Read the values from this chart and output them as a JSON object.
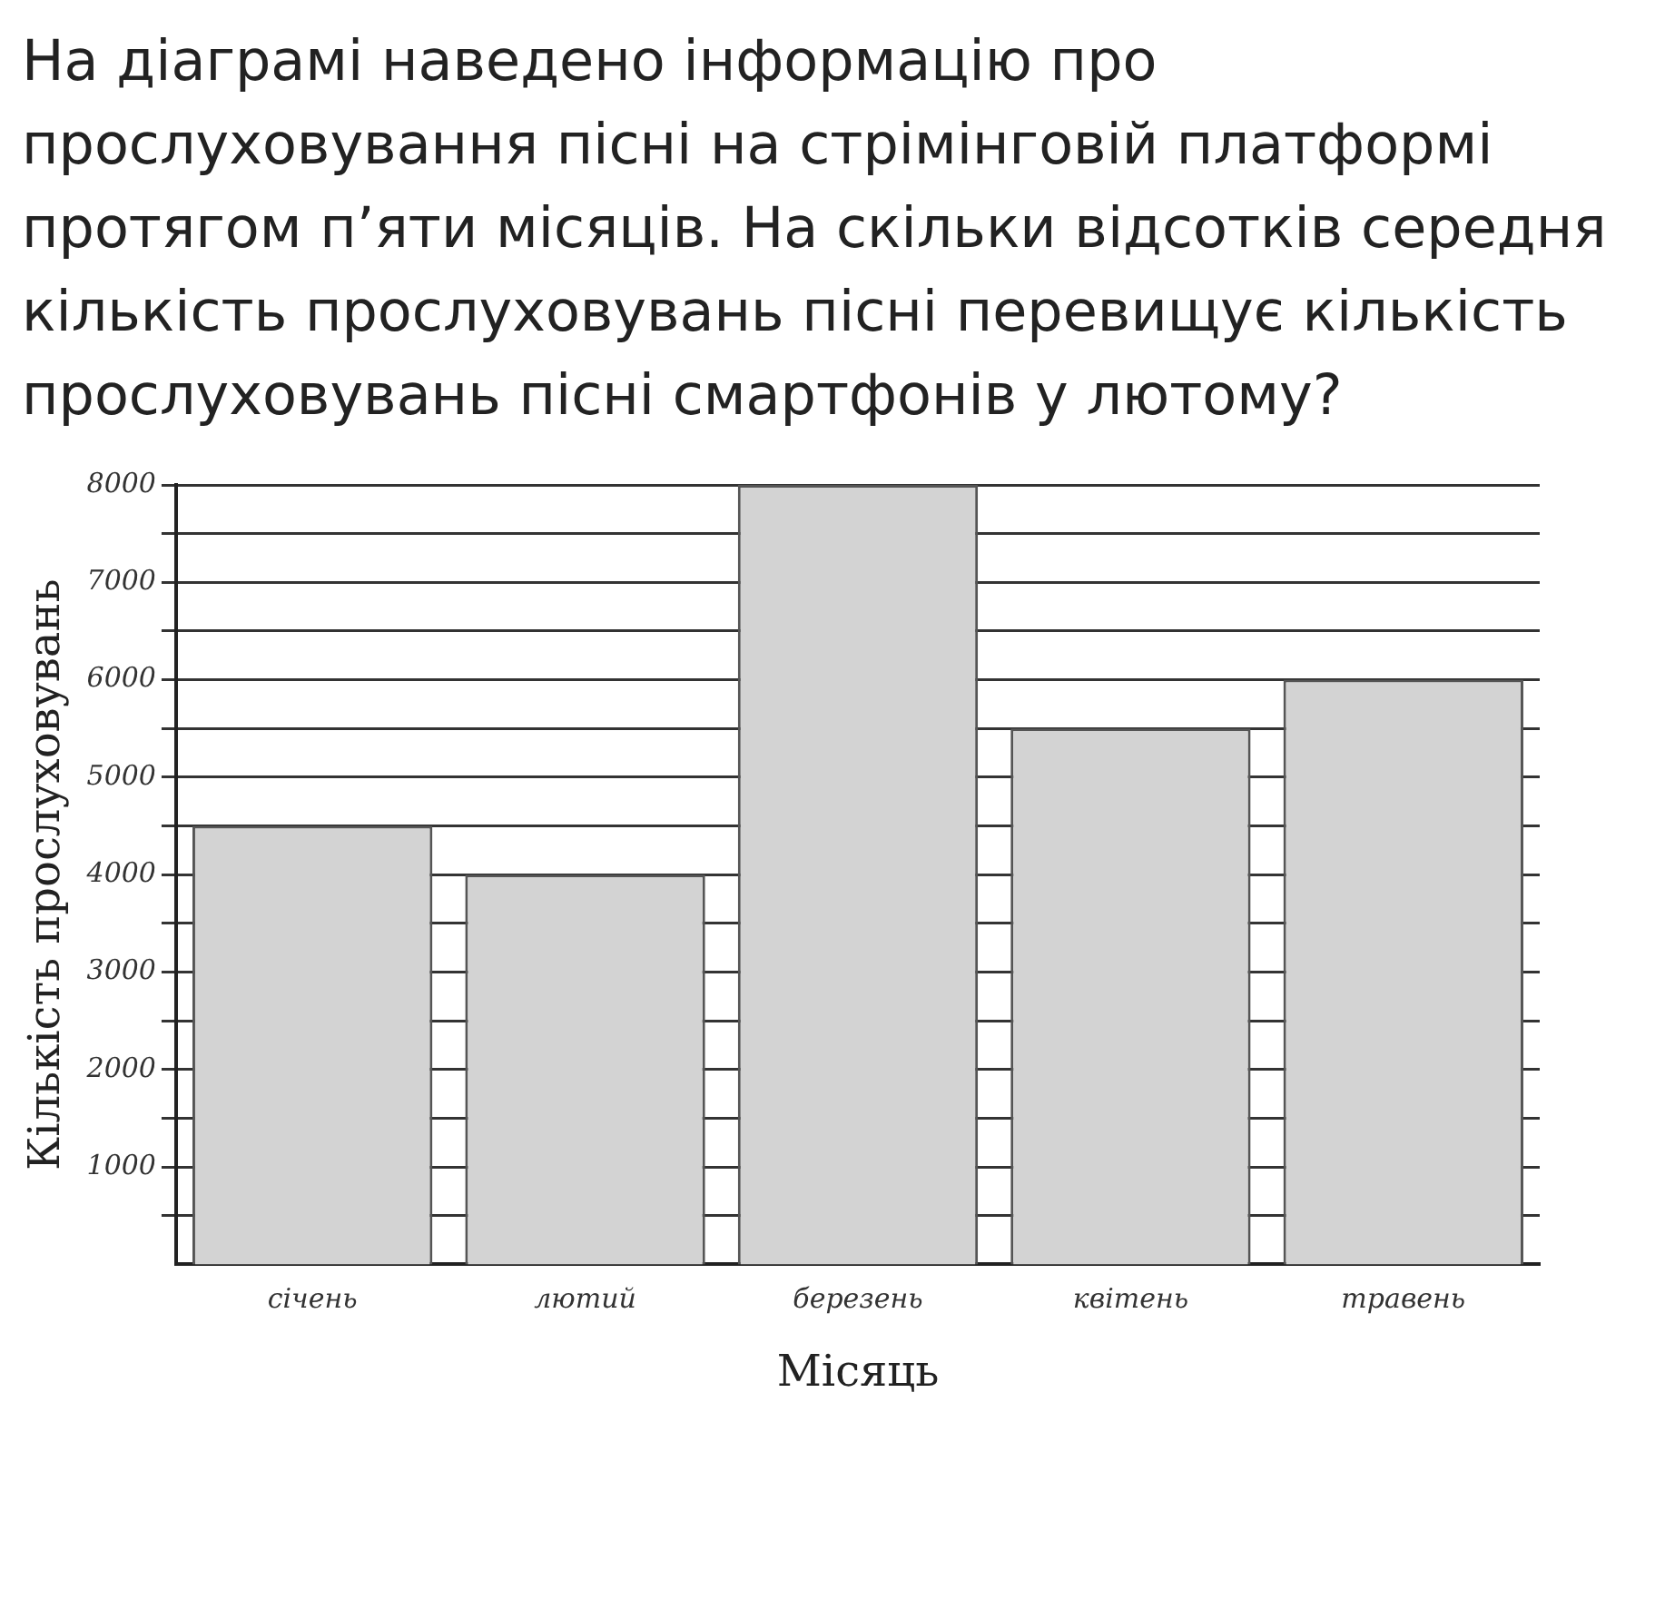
{
  "chart_data": {
    "type": "bar",
    "title": "На діаграмі наведено інформацію про прослуховування пісні на стрімінговій платформі протягом п’яти місяців. На скільки відсотків середня кількість прослуховувань пісні перевищує кількість прослуховувань пісні смартфонів у лютому?",
    "xlabel": "Місяць",
    "ylabel": "Кількість прослуховувань",
    "categories": [
      "січень",
      "лютий",
      "березень",
      "квітень",
      "травень"
    ],
    "values": [
      4500,
      4000,
      8000,
      5500,
      6000
    ],
    "color": "#d3d3d3",
    "ylim": [
      0,
      8000
    ],
    "yticks": [
      {
        "value": 500,
        "label": null
      },
      1000,
      {
        "value": 1500,
        "label": null
      },
      2000,
      {
        "value": 2500,
        "label": null
      },
      3000,
      {
        "value": 3500,
        "label": null
      },
      4000,
      {
        "value": 4500,
        "label": null
      },
      5000,
      {
        "value": 5500,
        "label": null
      },
      6000,
      {
        "value": 6500,
        "label": null
      },
      7000,
      {
        "value": 7500,
        "label": null
      },
      8000
    ],
    "grid": "y"
  }
}
